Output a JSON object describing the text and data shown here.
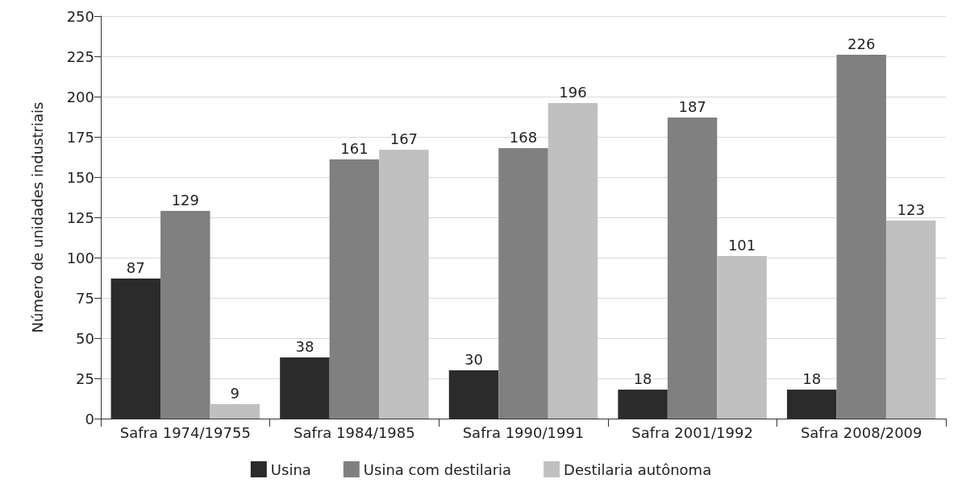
{
  "chart_data": {
    "type": "bar",
    "ylabel": "Número de unidades industriais",
    "categories": [
      "Safra 1974/19755",
      "Safra 1984/1985",
      "Safra 1990/1991",
      "Safra 2001/1992",
      "Safra 2008/2009"
    ],
    "series": [
      {
        "name": "Usina",
        "color": "#2b2b2b",
        "values": [
          87,
          38,
          30,
          18,
          18
        ]
      },
      {
        "name": "Usina com destilaria",
        "color": "#808080",
        "values": [
          129,
          161,
          168,
          187,
          226
        ]
      },
      {
        "name": "Destilaria autônoma",
        "color": "#c0c0c0",
        "values": [
          9,
          167,
          196,
          101,
          123
        ]
      }
    ],
    "ylim": [
      0,
      250
    ],
    "yticks": [
      0,
      25,
      50,
      75,
      100,
      125,
      150,
      175,
      200,
      225,
      250
    ],
    "grid": "y",
    "legend": "bottom",
    "data_labels": true
  }
}
